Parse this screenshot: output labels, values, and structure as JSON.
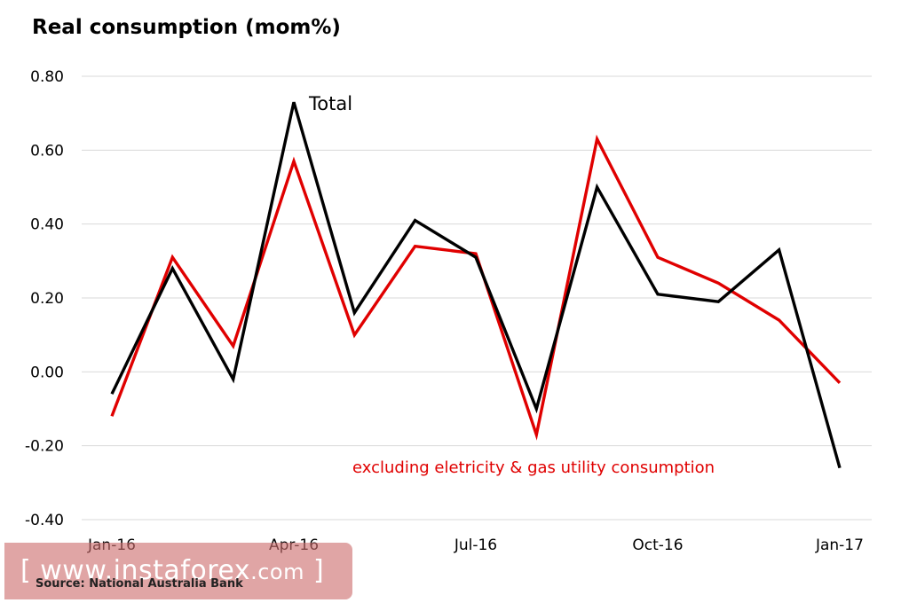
{
  "chart_data": {
    "type": "line",
    "title": "Real consumption (mom%)",
    "x": [
      "Jan-16",
      "Feb-16",
      "Mar-16",
      "Apr-16",
      "May-16",
      "Jun-16",
      "Jul-16",
      "Aug-16",
      "Sep-16",
      "Oct-16",
      "Nov-16",
      "Dec-16",
      "Jan-17"
    ],
    "x_tick_labels": [
      "Jan-16",
      "Apr-16",
      "Jul-16",
      "Oct-16",
      "Jan-17"
    ],
    "y_tick_labels": [
      "0.80",
      "0.60",
      "0.40",
      "0.20",
      "0.00",
      "-0.20",
      "-0.40"
    ],
    "ylim": [
      -0.4,
      0.8
    ],
    "grid": true,
    "series": [
      {
        "name": "Total",
        "color": "#000000",
        "values": [
          -0.06,
          0.28,
          -0.02,
          0.73,
          0.16,
          0.41,
          0.31,
          -0.1,
          0.5,
          0.21,
          0.19,
          0.33,
          -0.26
        ]
      },
      {
        "name": "excluding eletricity & gas utility consumption",
        "color": "#e00000",
        "values": [
          -0.12,
          0.31,
          0.07,
          0.57,
          0.1,
          0.34,
          0.32,
          -0.17,
          0.63,
          0.31,
          0.24,
          0.14,
          -0.03
        ]
      }
    ],
    "annotations": [
      "Total",
      "excluding eletricity & gas utility consumption"
    ]
  },
  "watermark": {
    "open": "[",
    "text": "www.instaforex",
    "suffix": ".com",
    "close": "]"
  },
  "source": "Source: National Australia Bank"
}
